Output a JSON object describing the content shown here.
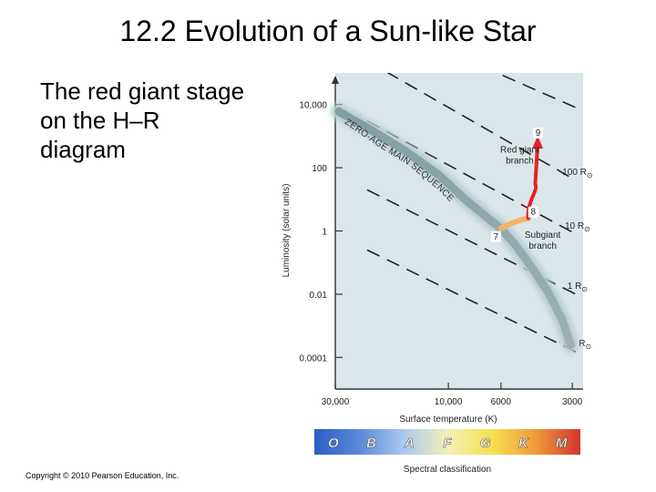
{
  "slide": {
    "title": "12.2 Evolution of a Sun-like Star",
    "body_text": "The red giant stage on the H–R diagram",
    "copyright": "Copyright © 2010 Pearson Education, Inc."
  },
  "chart_data": {
    "type": "line",
    "xlabel": "Surface temperature (K)",
    "ylabel": "Luminosity (solar units)",
    "x_scale": "log-reversed",
    "y_scale": "log",
    "xlim": [
      30000,
      2700
    ],
    "ylim": [
      1e-05,
      100000
    ],
    "x_ticks": [
      {
        "value": 30000,
        "label": "30,000"
      },
      {
        "value": 10000,
        "label": "10,000"
      },
      {
        "value": 6000,
        "label": "6000"
      },
      {
        "value": 3000,
        "label": "3000"
      }
    ],
    "y_ticks": [
      {
        "value": 10000,
        "label": "10,000"
      },
      {
        "value": 100,
        "label": "100"
      },
      {
        "value": 1,
        "label": "1"
      },
      {
        "value": 0.01,
        "label": "0.01"
      },
      {
        "value": 0.0001,
        "label": "0.0001"
      }
    ],
    "main_sequence": {
      "label": "ZERO-AGE MAIN SEQUENCE",
      "points": [
        [
          29000,
          6000
        ],
        [
          21000,
          1500
        ],
        [
          15000,
          320
        ],
        [
          11000,
          60
        ],
        [
          8500,
          10
        ],
        [
          6800,
          2.5
        ],
        [
          6000,
          1.2
        ],
        [
          5200,
          0.35
        ],
        [
          4500,
          0.08
        ],
        [
          3800,
          0.012
        ],
        [
          3300,
          0.0015
        ],
        [
          3050,
          0.00025
        ]
      ]
    },
    "radius_lines": [
      {
        "label": "100 R",
        "points": [
          [
            22000,
            240000
          ],
          [
            2900,
            40
          ]
        ]
      },
      {
        "label": "10 R",
        "points": [
          [
            22000,
            3000
          ],
          [
            2900,
            0.8
          ]
        ]
      },
      {
        "label": "1 R",
        "points": [
          [
            22000,
            20
          ],
          [
            2900,
            0.01
          ]
        ]
      },
      {
        "label": "0.1 R",
        "points": [
          [
            22000,
            0.25
          ],
          [
            2900,
            0.00015
          ]
        ]
      }
    ],
    "extra_dash_lines": [
      {
        "points": [
          [
            8700,
            300000
          ],
          [
            2900,
            8000
          ]
        ]
      }
    ],
    "tracks": [
      {
        "name": "Subgiant branch",
        "color": "#f4b36a",
        "points": [
          [
            6000,
            1.2
          ],
          [
            5300,
            1.7
          ],
          [
            4600,
            2.5
          ]
        ]
      },
      {
        "name": "Red giant branch",
        "color": "#e0242a",
        "points": [
          [
            4600,
            2.5
          ],
          [
            4300,
            30
          ],
          [
            4200,
            300
          ],
          [
            4200,
            900
          ]
        ]
      }
    ],
    "stages": [
      {
        "label": "7",
        "x": 6000,
        "y": 1.2
      },
      {
        "label": "8",
        "x": 4600,
        "y": 2.5
      },
      {
        "label": "9",
        "x": 4200,
        "y": 900
      }
    ],
    "annotations": [
      {
        "text": "Red giant branch",
        "x": 5000,
        "y": 300
      },
      {
        "text": "Subgiant branch",
        "x": 4000,
        "y": 0.6
      }
    ],
    "spectral_classes": [
      "O",
      "B",
      "A",
      "F",
      "G",
      "K",
      "M"
    ],
    "spectral_label": "Spectral classification",
    "spectral_colors": [
      "#2b5ec6",
      "#5b88d8",
      "#a7c8ee",
      "#f3efb8",
      "#f5e150",
      "#ef9a3a",
      "#d3332e"
    ]
  }
}
